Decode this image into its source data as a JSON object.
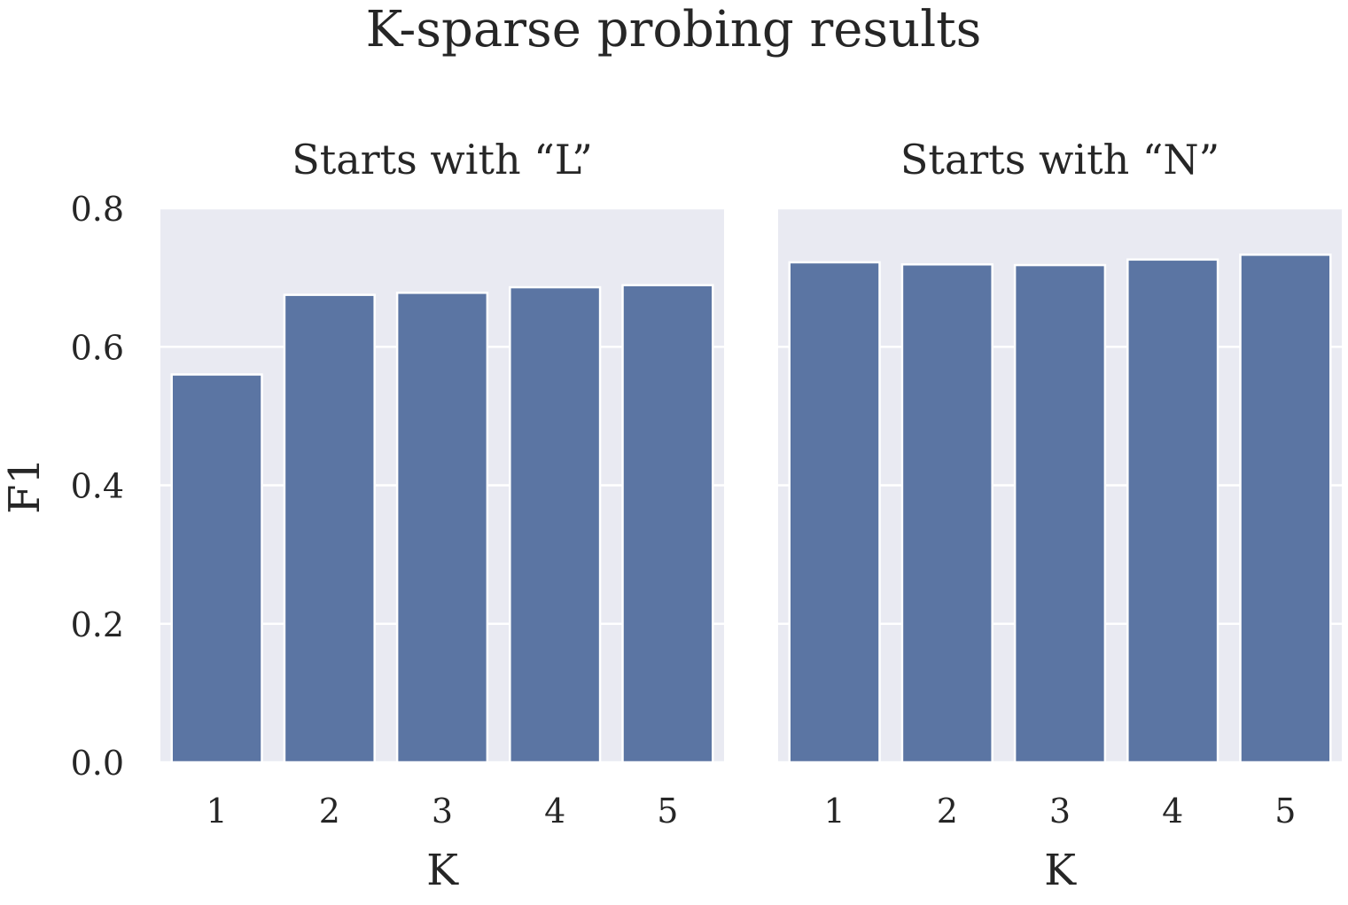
{
  "chart_data": {
    "type": "bar",
    "title": "K-sparse probing results",
    "ylabel": "F1",
    "ylim": [
      0,
      0.8
    ],
    "yticks": [
      "0.0",
      "0.2",
      "0.4",
      "0.6",
      "0.8"
    ],
    "grid": true,
    "colors": {
      "bar": "#5b75a3",
      "panel_bg": "#e9eaf2",
      "grid": "#ffffff"
    },
    "panels": [
      {
        "title": "Starts with “L”",
        "xlabel": "K",
        "categories": [
          "1",
          "2",
          "3",
          "4",
          "5"
        ],
        "values": [
          0.56,
          0.675,
          0.678,
          0.686,
          0.689
        ]
      },
      {
        "title": "Starts with “N”",
        "xlabel": "K",
        "categories": [
          "1",
          "2",
          "3",
          "4",
          "5"
        ],
        "values": [
          0.722,
          0.719,
          0.718,
          0.726,
          0.733
        ]
      }
    ]
  }
}
